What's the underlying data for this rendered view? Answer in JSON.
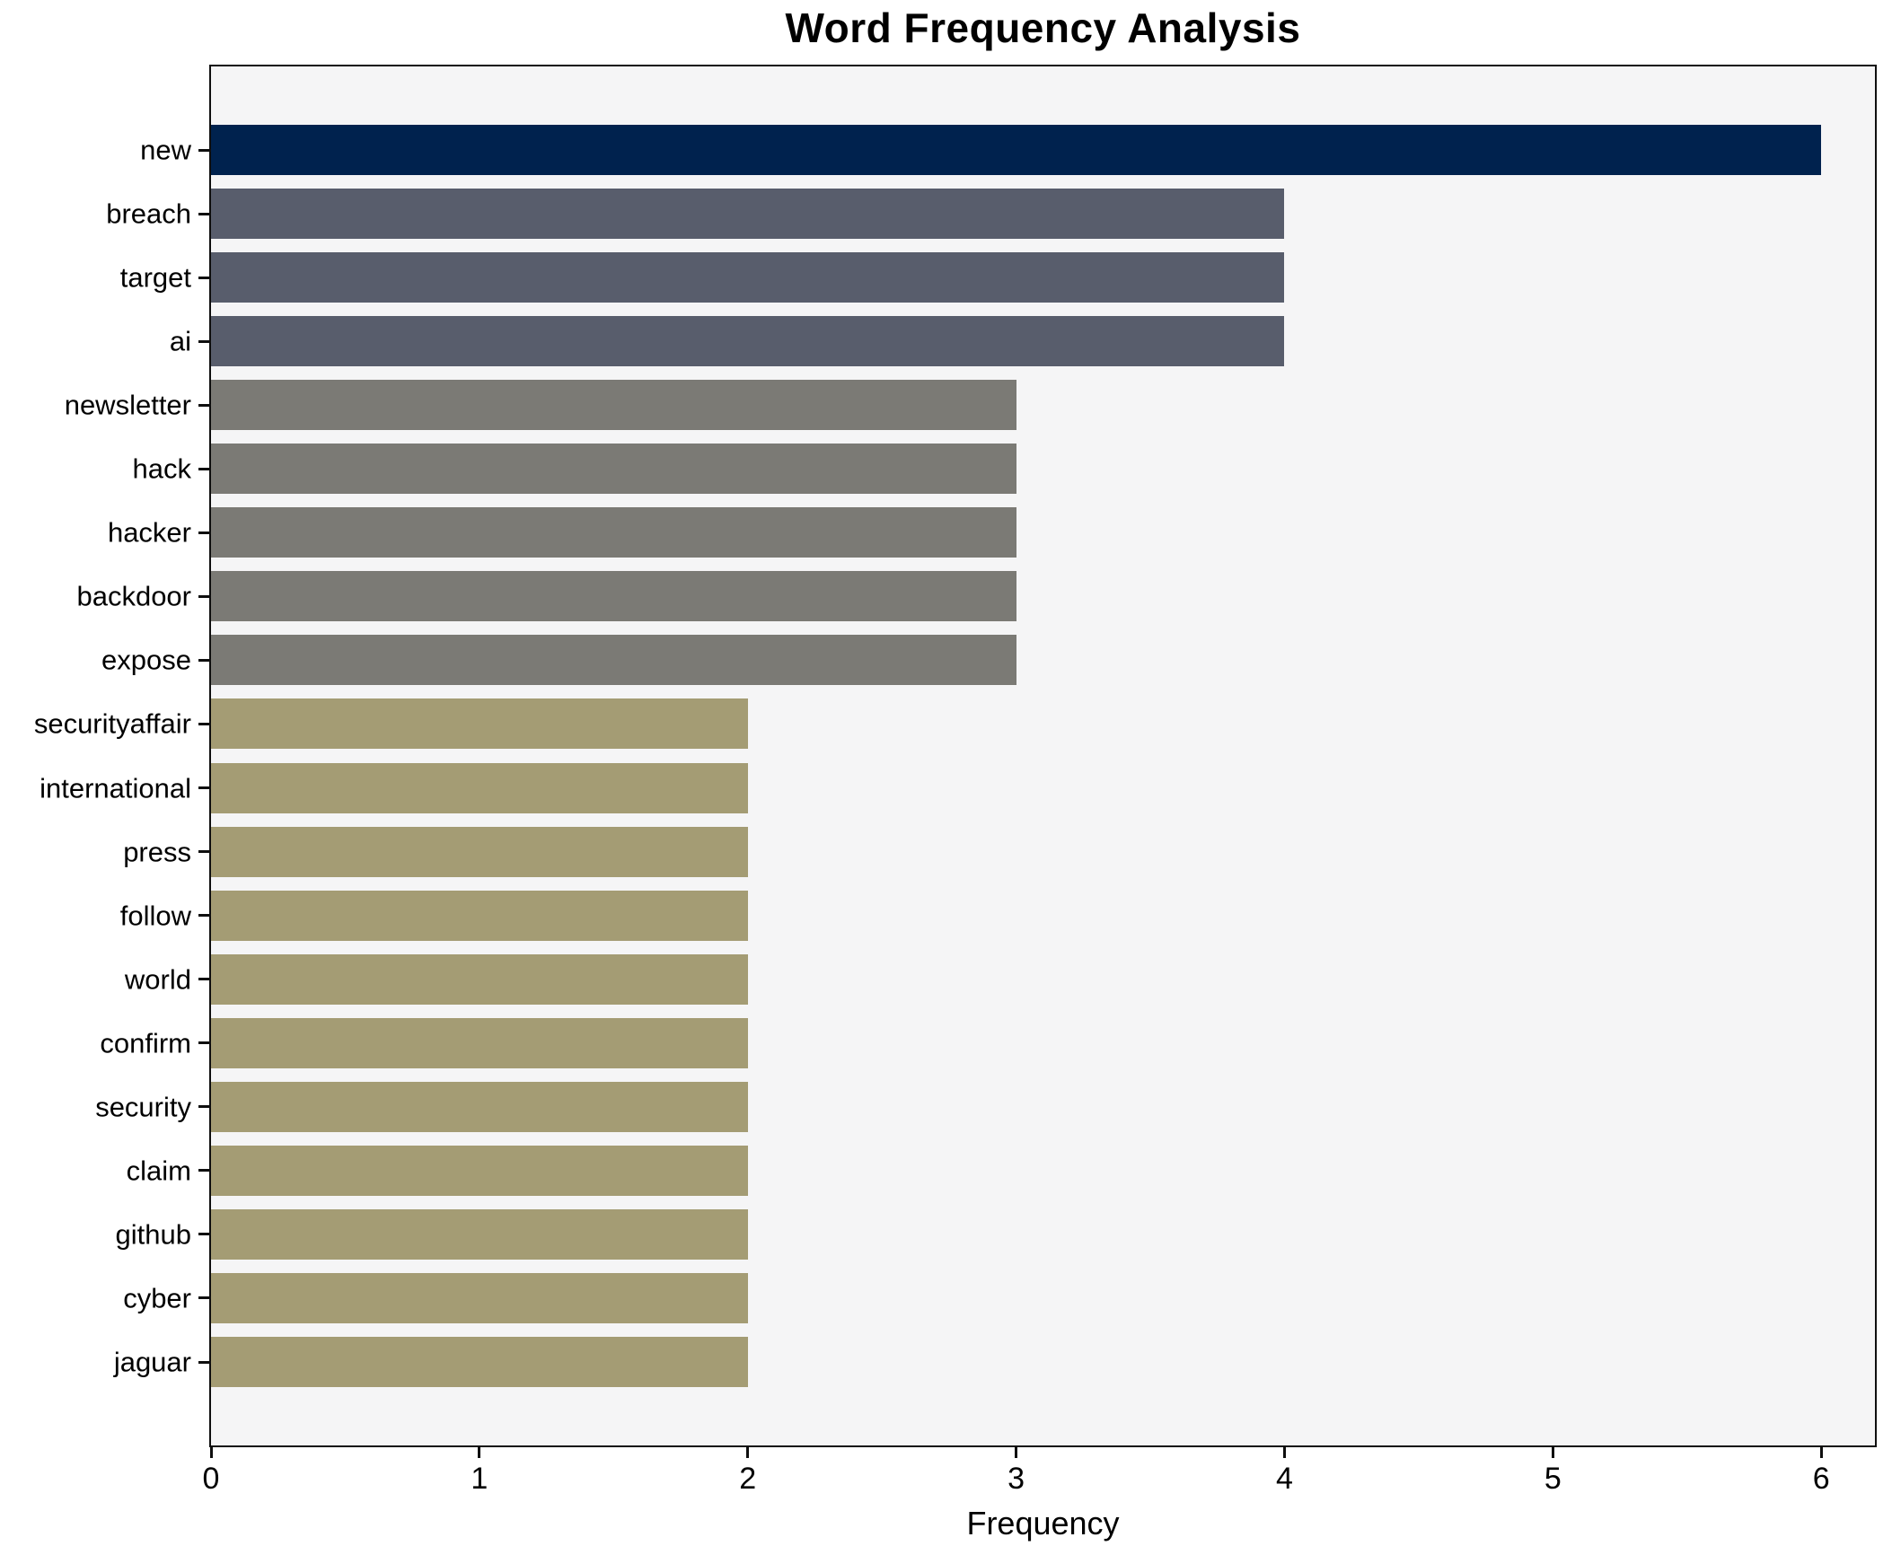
{
  "chart_data": {
    "type": "bar",
    "orientation": "horizontal",
    "title": "Word Frequency Analysis",
    "xlabel": "Frequency",
    "ylabel": "",
    "categories": [
      "new",
      "breach",
      "target",
      "ai",
      "newsletter",
      "hack",
      "hacker",
      "backdoor",
      "expose",
      "securityaffair",
      "international",
      "press",
      "follow",
      "world",
      "confirm",
      "security",
      "claim",
      "github",
      "cyber",
      "jaguar"
    ],
    "values": [
      6,
      4,
      4,
      4,
      3,
      3,
      3,
      3,
      3,
      2,
      2,
      2,
      2,
      2,
      2,
      2,
      2,
      2,
      2,
      2
    ],
    "xticks": [
      0,
      1,
      2,
      3,
      4,
      5,
      6
    ],
    "xlim": [
      0,
      6.2
    ],
    "grid": false,
    "legend": false,
    "bar_colors_by_value": {
      "6": "#00224e",
      "4": "#585d6c",
      "3": "#7b7a75",
      "2": "#a49c74"
    },
    "colors": {
      "figure_background": "#ffffff",
      "plot_background": "#f5f5f6",
      "spine": "#0f0f0f",
      "text": "#000000"
    }
  }
}
